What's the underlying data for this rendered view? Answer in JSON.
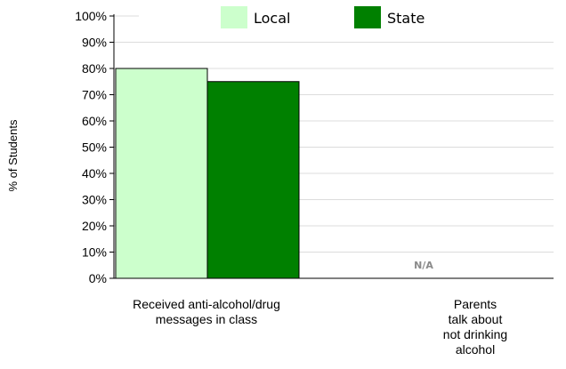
{
  "chart_data": {
    "type": "bar",
    "categories": [
      [
        "Received  anti-alcohol/drug",
        "messages in class"
      ],
      [
        "Parents",
        "talk about",
        "not drinking",
        "alcohol"
      ]
    ],
    "series": [
      {
        "name": "Local",
        "color": "#ccffcc",
        "values": [
          80,
          null
        ]
      },
      {
        "name": "State",
        "color": "#008000",
        "values": [
          75,
          null
        ]
      }
    ],
    "not_available_label": "N/A",
    "not_available_categories": [
      1
    ],
    "ylabel": "% of Students",
    "ylim": [
      0,
      100
    ],
    "yticks": [
      "0%",
      "10%",
      "20%",
      "30%",
      "40%",
      "50%",
      "60%",
      "70%",
      "80%",
      "90%",
      "100%"
    ],
    "grid": true,
    "legend_position": "top"
  }
}
